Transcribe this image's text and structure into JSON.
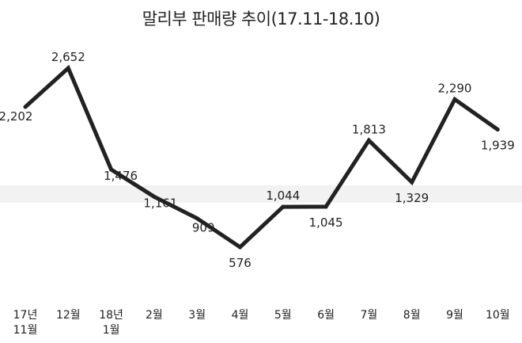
{
  "chart_data": {
    "type": "line",
    "title": "말리부 판매량 추이(17.11-18.10)",
    "xlabel": "",
    "ylabel": "",
    "categories": [
      [
        "17년",
        "11월"
      ],
      [
        "12월"
      ],
      [
        "18년",
        "1월"
      ],
      [
        "2월"
      ],
      [
        "3월"
      ],
      [
        "4월"
      ],
      [
        "5월"
      ],
      [
        "6월"
      ],
      [
        "7월"
      ],
      [
        "8월"
      ],
      [
        "9월"
      ],
      [
        "10월"
      ]
    ],
    "series": [
      {
        "values": [
          2202,
          2652,
          1476,
          1161,
          909,
          576,
          1044,
          1045,
          1813,
          1329,
          2290,
          1939
        ],
        "labels": [
          "2,202",
          "2,652",
          "1,476",
          "1,161",
          "909",
          "576",
          "1,044",
          "1,045",
          "1,813",
          "1,329",
          "2,290",
          "1,939"
        ],
        "color": "#222222"
      }
    ],
    "grid": false,
    "legend": "none"
  }
}
